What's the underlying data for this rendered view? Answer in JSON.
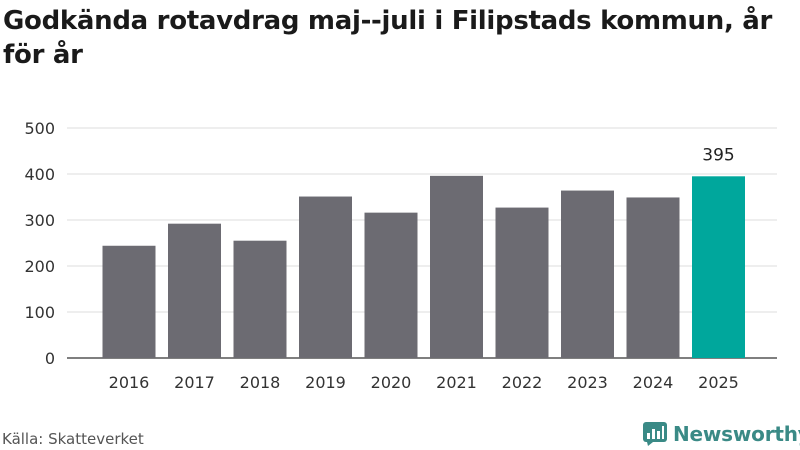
{
  "title": "Godkända rotavdrag maj--juli i Filipstads kommun, år för år",
  "source": "Källa: Skatteverket",
  "brand": {
    "name": "Newsworthy",
    "color": "#3a8a86"
  },
  "colors": {
    "bar": "#6c6b72",
    "highlight": "#00a79c",
    "grid": "#dddddd",
    "text": "#333333"
  },
  "chart_data": {
    "type": "bar",
    "categories": [
      "2016",
      "2017",
      "2018",
      "2019",
      "2020",
      "2021",
      "2022",
      "2023",
      "2024",
      "2025"
    ],
    "values": [
      244,
      292,
      255,
      351,
      316,
      396,
      327,
      364,
      349,
      395
    ],
    "highlight_index": 9,
    "data_labels": [
      {
        "index": 9,
        "text": "395"
      }
    ],
    "ylim": [
      0,
      500
    ],
    "yticks": [
      0,
      100,
      200,
      300,
      400,
      500
    ],
    "grid": true,
    "title": "Godkända rotavdrag maj--juli i Filipstads kommun, år för år",
    "xlabel": "",
    "ylabel": ""
  }
}
